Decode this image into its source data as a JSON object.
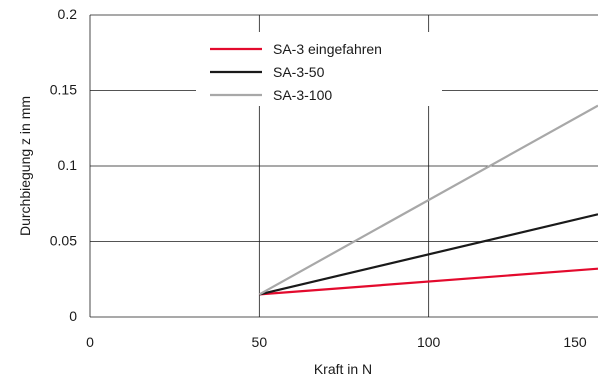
{
  "chart_data": {
    "type": "line",
    "xlabel": "Kraft in N",
    "ylabel": "Durchbiegung z in mm",
    "xlim": [
      0,
      150
    ],
    "ylim": [
      0,
      0.2
    ],
    "x_ticks": [
      "0",
      "50",
      "100",
      "150"
    ],
    "y_ticks": [
      "0",
      "0.05",
      "0.1",
      "0.15",
      "0.2"
    ],
    "grid": true,
    "legend_position": "top-center",
    "series": [
      {
        "name": "SA-3 eingefahren",
        "color": "#e30a2d",
        "x": [
          50,
          150
        ],
        "y": [
          0.015,
          0.032
        ]
      },
      {
        "name": "SA-3-50",
        "color": "#1a1a1a",
        "x": [
          50,
          150
        ],
        "y": [
          0.015,
          0.068
        ]
      },
      {
        "name": "SA-3-100",
        "color": "#a8a8a8",
        "x": [
          50,
          150
        ],
        "y": [
          0.015,
          0.14
        ]
      }
    ]
  }
}
